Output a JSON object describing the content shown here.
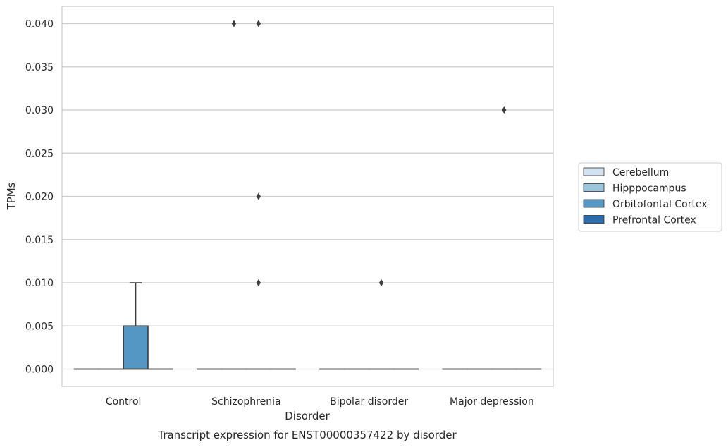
{
  "chart_data": {
    "type": "box",
    "xlabel": "Disorder",
    "ylabel": "TPMs",
    "caption": "Transcript expression for ENST00000357422 by disorder",
    "categories": [
      "Control",
      "Schizophrenia",
      "Bipolar disorder",
      "Major depression"
    ],
    "ylim": [
      -0.002,
      0.042
    ],
    "yticks": [
      0.0,
      0.005,
      0.01,
      0.015,
      0.02,
      0.025,
      0.03,
      0.035,
      0.04
    ],
    "ytick_labels": [
      "0.000",
      "0.005",
      "0.010",
      "0.015",
      "0.020",
      "0.025",
      "0.030",
      "0.035",
      "0.040"
    ],
    "grid": "horizontal",
    "legend_position": "right",
    "series": [
      {
        "name": "Cerebellum",
        "color": "#d1e2f1",
        "boxes": [
          {
            "q1": 0,
            "median": 0,
            "q3": 0,
            "whisker_low": 0,
            "whisker_high": 0,
            "outliers": []
          },
          {
            "q1": 0,
            "median": 0,
            "q3": 0,
            "whisker_low": 0,
            "whisker_high": 0,
            "outliers": []
          },
          {
            "q1": 0,
            "median": 0,
            "q3": 0,
            "whisker_low": 0,
            "whisker_high": 0,
            "outliers": []
          },
          {
            "q1": 0,
            "median": 0,
            "q3": 0,
            "whisker_low": 0,
            "whisker_high": 0,
            "outliers": []
          }
        ]
      },
      {
        "name": "Hipppocampus",
        "color": "#9bc4dd",
        "boxes": [
          {
            "q1": 0,
            "median": 0,
            "q3": 0,
            "whisker_low": 0,
            "whisker_high": 0,
            "outliers": []
          },
          {
            "q1": 0,
            "median": 0,
            "q3": 0,
            "whisker_low": 0,
            "whisker_high": 0,
            "outliers": [
              0.04
            ]
          },
          {
            "q1": 0,
            "median": 0,
            "q3": 0,
            "whisker_low": 0,
            "whisker_high": 0,
            "outliers": []
          },
          {
            "q1": 0,
            "median": 0,
            "q3": 0,
            "whisker_low": 0,
            "whisker_high": 0,
            "outliers": []
          }
        ]
      },
      {
        "name": "Orbitofontal Cortex",
        "color": "#5597c4",
        "boxes": [
          {
            "q1": 0,
            "median": 0,
            "q3": 0.005,
            "whisker_low": 0,
            "whisker_high": 0.01,
            "outliers": []
          },
          {
            "q1": 0,
            "median": 0,
            "q3": 0,
            "whisker_low": 0,
            "whisker_high": 0,
            "outliers": [
              0.04,
              0.02,
              0.01
            ]
          },
          {
            "q1": 0,
            "median": 0,
            "q3": 0,
            "whisker_low": 0,
            "whisker_high": 0,
            "outliers": [
              0.01
            ]
          },
          {
            "q1": 0,
            "median": 0,
            "q3": 0,
            "whisker_low": 0,
            "whisker_high": 0,
            "outliers": [
              0.03
            ]
          }
        ]
      },
      {
        "name": "Prefrontal Cortex",
        "color": "#2b6ba9",
        "boxes": [
          {
            "q1": 0,
            "median": 0,
            "q3": 0,
            "whisker_low": 0,
            "whisker_high": 0,
            "outliers": []
          },
          {
            "q1": 0,
            "median": 0,
            "q3": 0,
            "whisker_low": 0,
            "whisker_high": 0,
            "outliers": []
          },
          {
            "q1": 0,
            "median": 0,
            "q3": 0,
            "whisker_low": 0,
            "whisker_high": 0,
            "outliers": []
          },
          {
            "q1": 0,
            "median": 0,
            "q3": 0,
            "whisker_low": 0,
            "whisker_high": 0,
            "outliers": []
          }
        ]
      }
    ]
  }
}
